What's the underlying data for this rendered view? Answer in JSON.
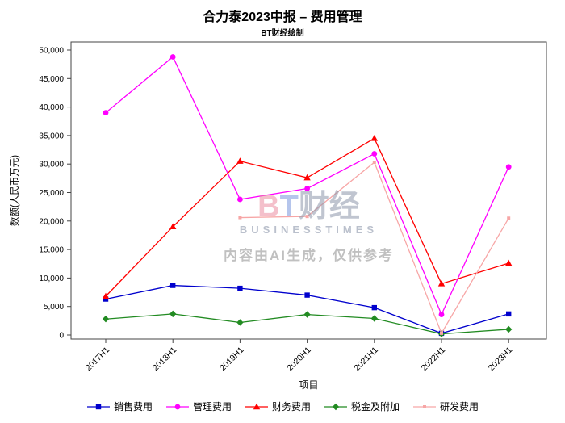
{
  "header": {
    "title": "合力泰2023中报 – 费用管理",
    "subtitle": "BT财经绘制"
  },
  "watermark": {
    "brand_b": "B",
    "brand_t": "T",
    "brand_cn": "财经",
    "brand_sub": "BUSINESSTIMES",
    "notice": "内容由AI生成，仅供参考"
  },
  "chart_data": {
    "type": "line",
    "title": "合力泰2023中报 – 费用管理",
    "xlabel": "项目",
    "ylabel": "数额(人民币万元)",
    "categories": [
      "2017H1",
      "2018H1",
      "2019H1",
      "2020H1",
      "2021H1",
      "2022H1",
      "2023H1"
    ],
    "ylim": [
      0,
      50000
    ],
    "ytick_step": 5000,
    "grid": false,
    "legend_position": "bottom",
    "series": [
      {
        "name": "销售费用",
        "color": "#0000CD",
        "marker": "square",
        "values": [
          6300,
          8700,
          8200,
          7000,
          4800,
          300,
          3700
        ]
      },
      {
        "name": "管理费用",
        "color": "#FF00FF",
        "marker": "circle",
        "values": [
          39000,
          48800,
          23800,
          25700,
          31800,
          3600,
          29500
        ]
      },
      {
        "name": "财务费用",
        "color": "#FF0000",
        "marker": "triangle",
        "values": [
          6800,
          19000,
          30500,
          27600,
          34500,
          9000,
          12600
        ]
      },
      {
        "name": "税金及附加",
        "color": "#228B22",
        "marker": "diamond",
        "values": [
          2800,
          3700,
          2200,
          3600,
          2900,
          200,
          1000
        ]
      },
      {
        "name": "研发费用",
        "color": "#F7A6A6",
        "marker": "square-small",
        "values": [
          null,
          null,
          20600,
          20800,
          30300,
          300,
          20500
        ]
      }
    ]
  }
}
